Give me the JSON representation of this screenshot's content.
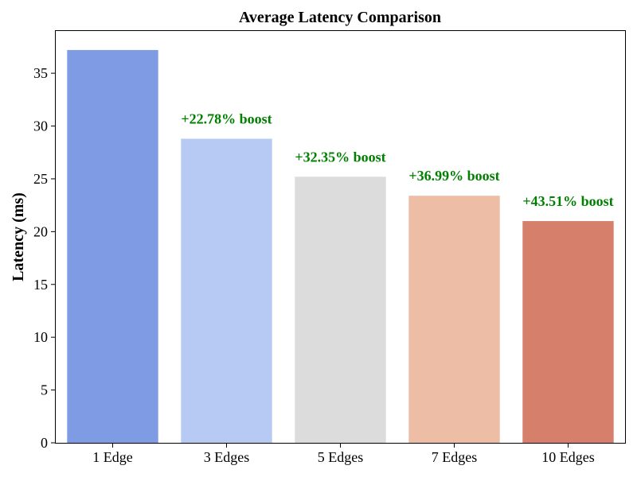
{
  "chart_data": {
    "type": "bar",
    "title": "Average Latency Comparison",
    "xlabel": "",
    "ylabel": "Latency (ms)",
    "ylim": [
      0,
      39
    ],
    "yticks": [
      0,
      5,
      10,
      15,
      20,
      25,
      30,
      35
    ],
    "categories": [
      "1 Edge",
      "3 Edges",
      "5 Edges",
      "7 Edges",
      "10 Edges"
    ],
    "values": [
      37.2,
      28.8,
      25.2,
      23.4,
      21.0
    ],
    "colors": [
      "#7f9be4",
      "#b7caf4",
      "#dcdcdc",
      "#edbda6",
      "#d6806c"
    ],
    "annotations": [
      "",
      "+22.78% boost",
      "+32.35% boost",
      "+36.99% boost",
      "+43.51% boost"
    ],
    "annotation_color": "#008000",
    "grid": false,
    "legend": "none"
  }
}
